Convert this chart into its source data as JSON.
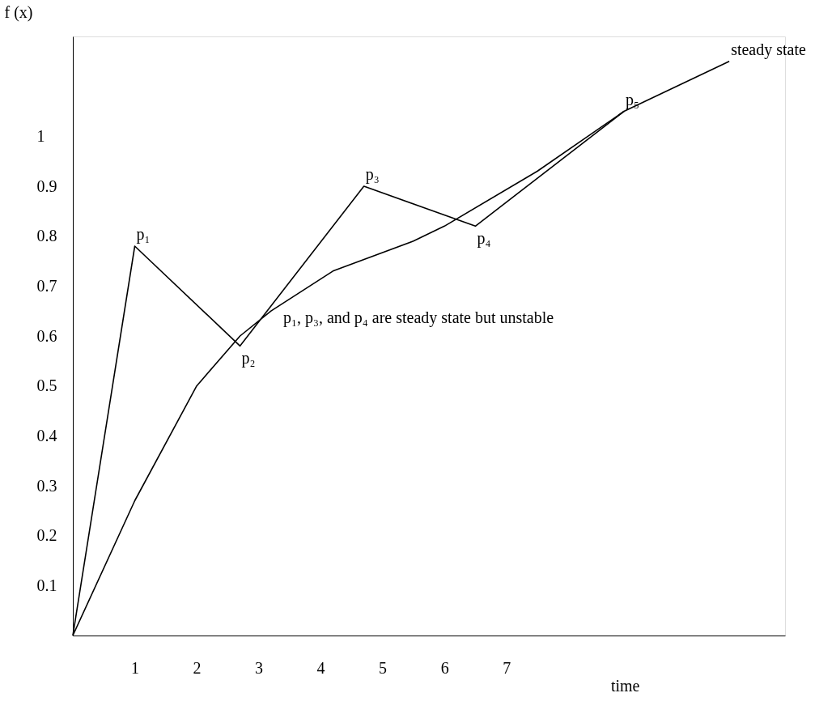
{
  "chart_data": {
    "type": "line",
    "xlabel": "time",
    "ylabel": "f (x)",
    "xlim": [
      0,
      11.5
    ],
    "ylim": [
      0,
      1.2
    ],
    "xticks": [
      1,
      2,
      3,
      4,
      5,
      6,
      7
    ],
    "yticks": [
      0.1,
      0.2,
      0.3,
      0.4,
      0.5,
      0.6,
      0.7,
      0.8,
      0.9,
      1
    ],
    "series": [
      {
        "color": "#000000",
        "x": [
          0,
          1,
          2.7,
          4.7,
          6.5,
          8.9
        ],
        "values": [
          0,
          0.78,
          0.58,
          0.9,
          0.82,
          1.05
        ]
      },
      {
        "color": "#000000",
        "x": [
          0,
          1,
          2,
          2.7,
          3.2,
          4.2,
          5.5,
          6.0,
          7.5,
          8.9,
          10.6
        ],
        "values": [
          0,
          0.27,
          0.5,
          0.6,
          0.65,
          0.73,
          0.79,
          0.82,
          0.93,
          1.05,
          1.15
        ]
      }
    ],
    "annotations": [
      {
        "text": "p₁",
        "x": 1,
        "y": 0.78
      },
      {
        "text": "p₂",
        "x": 2.7,
        "y": 0.58
      },
      {
        "text": "p₃",
        "x": 4.7,
        "y": 0.9
      },
      {
        "text": "p₄",
        "x": 6.5,
        "y": 0.82
      },
      {
        "text": "p₅",
        "x": 8.9,
        "y": 1.05
      },
      {
        "text": "steady state",
        "x": 10.6,
        "y": 1.15
      },
      "p₁, p₃, and p₄ are steady state but unstable"
    ],
    "grid": false,
    "marker": "none",
    "line_style": "solid"
  }
}
